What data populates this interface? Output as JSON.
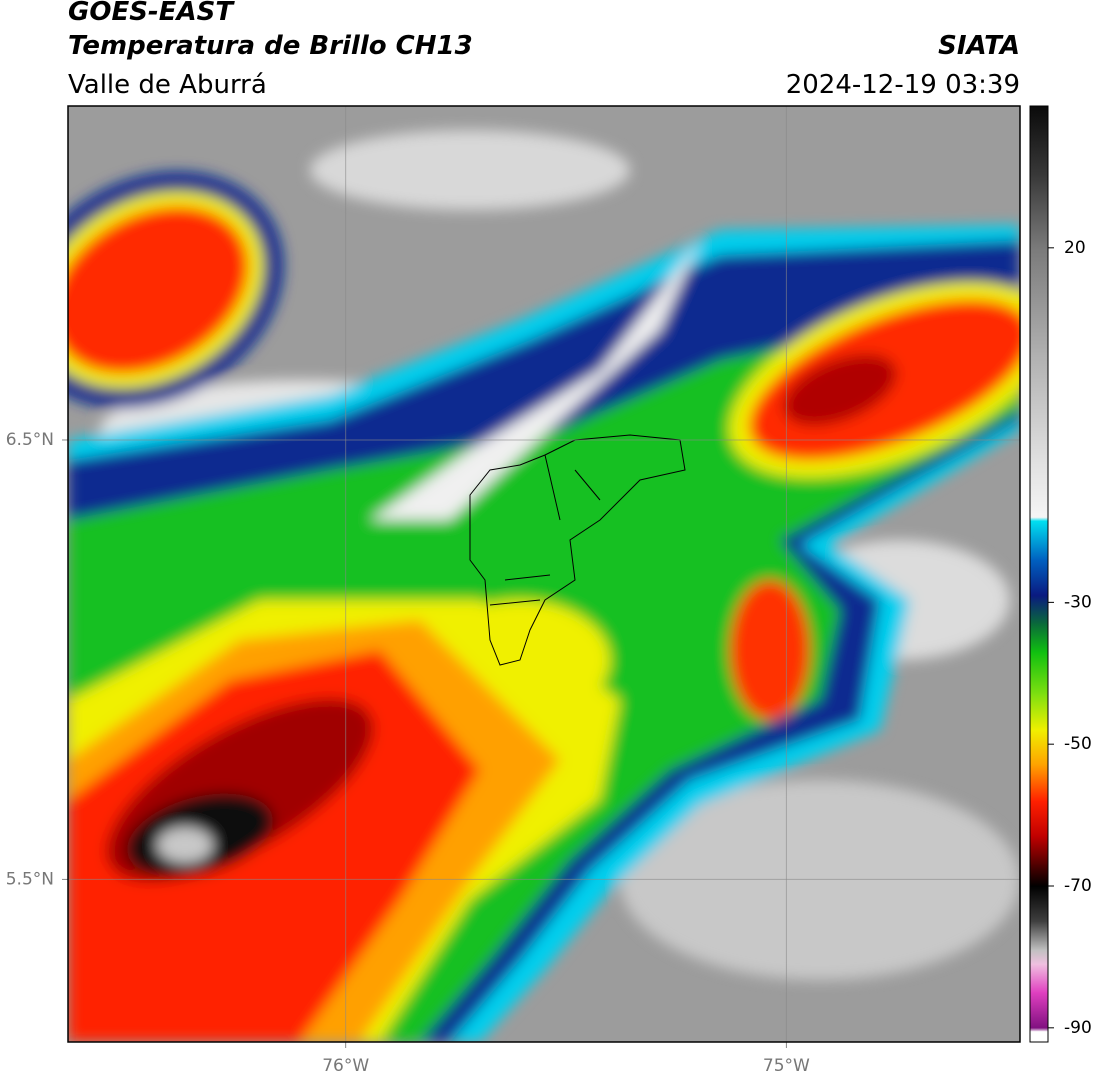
{
  "header": {
    "title": "GOES-EAST",
    "subtitle": "Temperatura de Brillo CH13",
    "region": "Valle de Aburrá",
    "source": "SIATA",
    "datetime": "2024-12-19 03:39"
  },
  "chart_data": {
    "type": "map",
    "xlim": [
      -76.63,
      -74.47
    ],
    "ylim": [
      5.13,
      7.26
    ],
    "xticks": [
      {
        "value": -76,
        "label": "76°W"
      },
      {
        "value": -75,
        "label": "75°W"
      }
    ],
    "yticks": [
      {
        "value": 5.5,
        "label": "5.5°N"
      },
      {
        "value": 6.5,
        "label": "6.5°N"
      }
    ],
    "grid": true,
    "colorbar": {
      "lim": [
        -92,
        40
      ],
      "ticks": [
        20,
        -30,
        -50,
        -70,
        -90
      ],
      "stops": [
        {
          "value": 40,
          "color": "#0a0a0a"
        },
        {
          "value": 30,
          "color": "#3a3a3a"
        },
        {
          "value": 20,
          "color": "#7a7a7a"
        },
        {
          "value": 5,
          "color": "#b0b0b0"
        },
        {
          "value": -10,
          "color": "#e0e0e0"
        },
        {
          "value": -18,
          "color": "#f5f5f5"
        },
        {
          "value": -18.5,
          "color": "#00e0f0"
        },
        {
          "value": -24,
          "color": "#0060c0"
        },
        {
          "value": -29,
          "color": "#0a1a80"
        },
        {
          "value": -33,
          "color": "#0a6a3a"
        },
        {
          "value": -37,
          "color": "#10c010"
        },
        {
          "value": -43,
          "color": "#80e010"
        },
        {
          "value": -48,
          "color": "#f0f000"
        },
        {
          "value": -53,
          "color": "#ffa000"
        },
        {
          "value": -58,
          "color": "#ff2000"
        },
        {
          "value": -63,
          "color": "#c00000"
        },
        {
          "value": -67,
          "color": "#500000"
        },
        {
          "value": -70,
          "color": "#000000"
        },
        {
          "value": -75,
          "color": "#404040"
        },
        {
          "value": -79,
          "color": "#c0c0c0"
        },
        {
          "value": -81,
          "color": "#f0c0e0"
        },
        {
          "value": -85,
          "color": "#e040c0"
        },
        {
          "value": -90,
          "color": "#801080"
        },
        {
          "value": -90.5,
          "color": "#ffffff"
        },
        {
          "value": -92,
          "color": "#ffffff"
        }
      ]
    }
  }
}
